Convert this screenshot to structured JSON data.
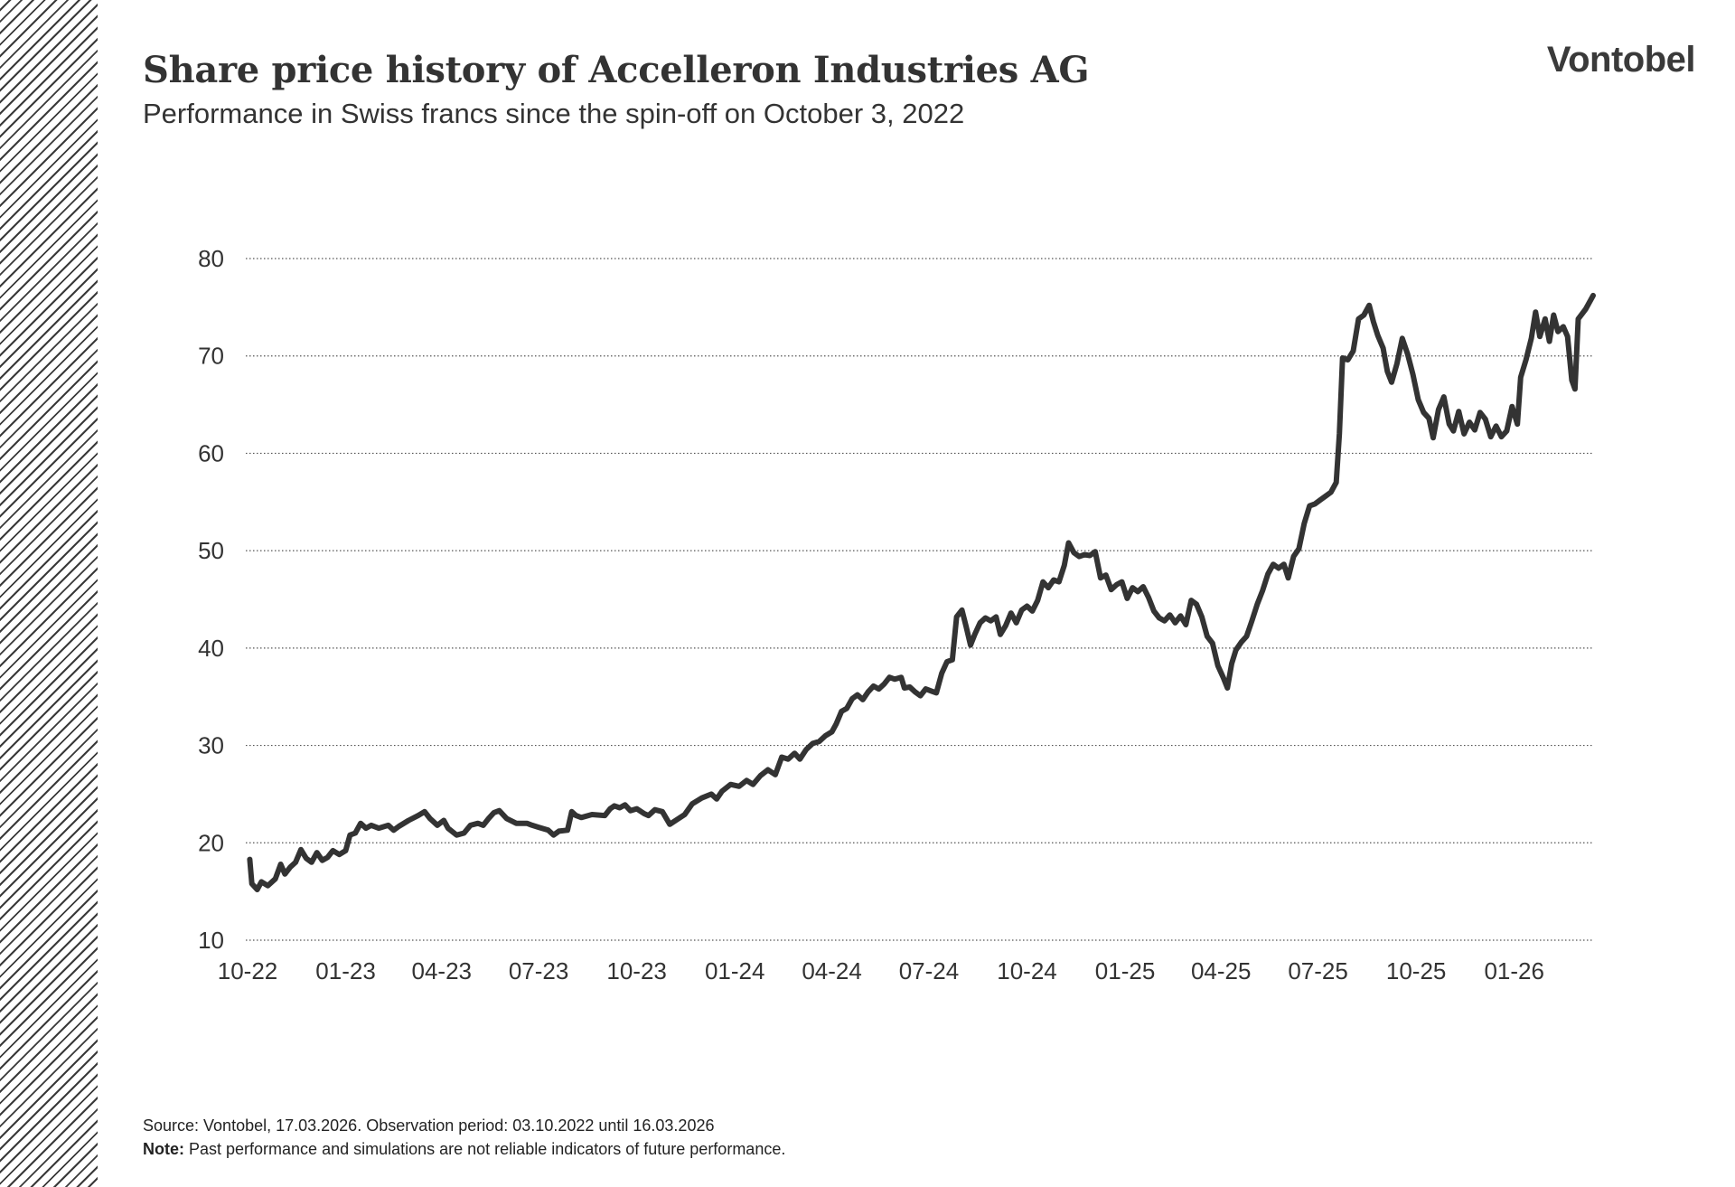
{
  "header": {
    "title": "Share price history of Accelleron Industries AG",
    "subtitle": "Performance in Swiss francs since the spin-off on October 3, 2022",
    "logo": "Vontobel"
  },
  "footer": {
    "source": "Source: Vontobel, 17.03.2026. Observation period: 03.10.2022 until 16.03.2026",
    "note_label": "Note:",
    "note_text": " Past performance and simulations are not reliable indicators of future performance."
  },
  "colors": {
    "line": "#333333",
    "grid": "#555555",
    "text": "#333333"
  },
  "chart_data": {
    "type": "line",
    "title": "Share price history of Accelleron Industries AG",
    "subtitle": "Performance in Swiss francs since the spin-off on October 3, 2022",
    "xlabel": "",
    "ylabel": "",
    "ylim": [
      10,
      80
    ],
    "yticks": [
      10,
      20,
      30,
      40,
      50,
      60,
      70,
      80
    ],
    "xlim": [
      "2022-10-03",
      "2026-03-16"
    ],
    "xticks": [
      {
        "label": "10-22",
        "date": "2022-10-01"
      },
      {
        "label": "01-23",
        "date": "2023-01-01"
      },
      {
        "label": "04-23",
        "date": "2023-04-01"
      },
      {
        "label": "07-23",
        "date": "2023-07-01"
      },
      {
        "label": "10-23",
        "date": "2023-10-01"
      },
      {
        "label": "01-24",
        "date": "2024-01-01"
      },
      {
        "label": "04-24",
        "date": "2024-04-01"
      },
      {
        "label": "07-24",
        "date": "2024-07-01"
      },
      {
        "label": "10-24",
        "date": "2024-10-01"
      },
      {
        "label": "01-25",
        "date": "2025-01-01"
      },
      {
        "label": "04-25",
        "date": "2025-04-01"
      },
      {
        "label": "07-25",
        "date": "2025-07-01"
      },
      {
        "label": "10-25",
        "date": "2025-10-01"
      },
      {
        "label": "01-26",
        "date": "2026-01-01"
      }
    ],
    "grid": "horizontal dotted",
    "legend": "none",
    "series": [
      {
        "points": [
          [
            "2022-10-03",
            18.3
          ],
          [
            "2022-10-05",
            15.8
          ],
          [
            "2022-10-10",
            15.2
          ],
          [
            "2022-10-14",
            16.0
          ],
          [
            "2022-10-20",
            15.6
          ],
          [
            "2022-10-27",
            16.3
          ],
          [
            "2022-11-01",
            17.8
          ],
          [
            "2022-11-05",
            16.8
          ],
          [
            "2022-11-10",
            17.5
          ],
          [
            "2022-11-15",
            18.0
          ],
          [
            "2022-11-20",
            19.3
          ],
          [
            "2022-11-25",
            18.4
          ],
          [
            "2022-11-30",
            18.0
          ],
          [
            "2022-12-05",
            19.0
          ],
          [
            "2022-12-10",
            18.2
          ],
          [
            "2022-12-15",
            18.5
          ],
          [
            "2022-12-20",
            19.2
          ],
          [
            "2022-12-26",
            18.8
          ],
          [
            "2023-01-01",
            19.2
          ],
          [
            "2023-01-05",
            20.8
          ],
          [
            "2023-01-10",
            21.0
          ],
          [
            "2023-01-15",
            22.0
          ],
          [
            "2023-01-20",
            21.5
          ],
          [
            "2023-01-25",
            21.8
          ],
          [
            "2023-02-01",
            21.5
          ],
          [
            "2023-02-10",
            21.8
          ],
          [
            "2023-02-15",
            21.3
          ],
          [
            "2023-02-20",
            21.7
          ],
          [
            "2023-03-01",
            22.3
          ],
          [
            "2023-03-10",
            22.8
          ],
          [
            "2023-03-16",
            23.2
          ],
          [
            "2023-03-21",
            22.5
          ],
          [
            "2023-03-28",
            21.8
          ],
          [
            "2023-04-03",
            22.3
          ],
          [
            "2023-04-07",
            21.5
          ],
          [
            "2023-04-15",
            20.8
          ],
          [
            "2023-04-22",
            21.0
          ],
          [
            "2023-04-28",
            21.8
          ],
          [
            "2023-05-05",
            22.0
          ],
          [
            "2023-05-10",
            21.8
          ],
          [
            "2023-05-15",
            22.5
          ],
          [
            "2023-05-20",
            23.1
          ],
          [
            "2023-05-25",
            23.3
          ],
          [
            "2023-06-01",
            22.5
          ],
          [
            "2023-06-10",
            22.0
          ],
          [
            "2023-06-20",
            22.0
          ],
          [
            "2023-06-25",
            21.8
          ],
          [
            "2023-07-01",
            21.6
          ],
          [
            "2023-07-10",
            21.3
          ],
          [
            "2023-07-15",
            20.8
          ],
          [
            "2023-07-20",
            21.2
          ],
          [
            "2023-07-28",
            21.3
          ],
          [
            "2023-08-01",
            23.2
          ],
          [
            "2023-08-05",
            22.8
          ],
          [
            "2023-08-10",
            22.6
          ],
          [
            "2023-08-20",
            22.9
          ],
          [
            "2023-09-01",
            22.8
          ],
          [
            "2023-09-06",
            23.5
          ],
          [
            "2023-09-10",
            23.8
          ],
          [
            "2023-09-15",
            23.6
          ],
          [
            "2023-09-20",
            23.9
          ],
          [
            "2023-09-25",
            23.3
          ],
          [
            "2023-10-01",
            23.5
          ],
          [
            "2023-10-08",
            23.0
          ],
          [
            "2023-10-12",
            22.8
          ],
          [
            "2023-10-18",
            23.4
          ],
          [
            "2023-10-25",
            23.2
          ],
          [
            "2023-11-01",
            21.9
          ],
          [
            "2023-11-08",
            22.4
          ],
          [
            "2023-11-15",
            22.9
          ],
          [
            "2023-11-22",
            24.0
          ],
          [
            "2023-12-01",
            24.6
          ],
          [
            "2023-12-10",
            25.0
          ],
          [
            "2023-12-15",
            24.5
          ],
          [
            "2023-12-20",
            25.3
          ],
          [
            "2023-12-28",
            26.0
          ],
          [
            "2024-01-05",
            25.8
          ],
          [
            "2024-01-12",
            26.4
          ],
          [
            "2024-01-18",
            26.0
          ],
          [
            "2024-01-25",
            26.9
          ],
          [
            "2024-02-01",
            27.5
          ],
          [
            "2024-02-08",
            27.0
          ],
          [
            "2024-02-14",
            28.8
          ],
          [
            "2024-02-20",
            28.6
          ],
          [
            "2024-02-26",
            29.2
          ],
          [
            "2024-03-02",
            28.6
          ],
          [
            "2024-03-08",
            29.6
          ],
          [
            "2024-03-14",
            30.2
          ],
          [
            "2024-03-20",
            30.4
          ],
          [
            "2024-03-26",
            31.0
          ],
          [
            "2024-04-01",
            31.4
          ],
          [
            "2024-04-05",
            32.2
          ],
          [
            "2024-04-10",
            33.5
          ],
          [
            "2024-04-15",
            33.8
          ],
          [
            "2024-04-20",
            34.8
          ],
          [
            "2024-04-25",
            35.2
          ],
          [
            "2024-04-30",
            34.7
          ],
          [
            "2024-05-05",
            35.5
          ],
          [
            "2024-05-10",
            36.1
          ],
          [
            "2024-05-15",
            35.8
          ],
          [
            "2024-05-20",
            36.3
          ],
          [
            "2024-05-25",
            37.0
          ],
          [
            "2024-05-30",
            36.8
          ],
          [
            "2024-06-05",
            37.0
          ],
          [
            "2024-06-08",
            35.9
          ],
          [
            "2024-06-13",
            36.0
          ],
          [
            "2024-06-18",
            35.5
          ],
          [
            "2024-06-23",
            35.1
          ],
          [
            "2024-06-28",
            35.8
          ],
          [
            "2024-07-03",
            35.6
          ],
          [
            "2024-07-08",
            35.4
          ],
          [
            "2024-07-13",
            37.4
          ],
          [
            "2024-07-18",
            38.6
          ],
          [
            "2024-07-23",
            38.8
          ],
          [
            "2024-07-27",
            43.2
          ],
          [
            "2024-08-01",
            43.9
          ],
          [
            "2024-08-05",
            42.2
          ],
          [
            "2024-08-09",
            40.3
          ],
          [
            "2024-08-13",
            41.4
          ],
          [
            "2024-08-18",
            42.6
          ],
          [
            "2024-08-23",
            43.1
          ],
          [
            "2024-08-28",
            42.8
          ],
          [
            "2024-09-02",
            43.2
          ],
          [
            "2024-09-06",
            41.4
          ],
          [
            "2024-09-11",
            42.3
          ],
          [
            "2024-09-16",
            43.6
          ],
          [
            "2024-09-21",
            42.6
          ],
          [
            "2024-09-26",
            43.9
          ],
          [
            "2024-10-01",
            44.3
          ],
          [
            "2024-10-06",
            43.8
          ],
          [
            "2024-10-11",
            44.9
          ],
          [
            "2024-10-16",
            46.8
          ],
          [
            "2024-10-21",
            46.2
          ],
          [
            "2024-10-26",
            47.0
          ],
          [
            "2024-10-31",
            46.8
          ],
          [
            "2024-11-05",
            48.5
          ],
          [
            "2024-11-09",
            50.8
          ],
          [
            "2024-11-14",
            49.8
          ],
          [
            "2024-11-19",
            49.4
          ],
          [
            "2024-11-24",
            49.6
          ],
          [
            "2024-11-29",
            49.5
          ],
          [
            "2024-12-04",
            49.9
          ],
          [
            "2024-12-09",
            47.2
          ],
          [
            "2024-12-14",
            47.5
          ],
          [
            "2024-12-19",
            46.0
          ],
          [
            "2024-12-24",
            46.5
          ],
          [
            "2024-12-29",
            46.8
          ],
          [
            "2025-01-03",
            45.1
          ],
          [
            "2025-01-08",
            46.2
          ],
          [
            "2025-01-13",
            45.8
          ],
          [
            "2025-01-18",
            46.3
          ],
          [
            "2025-01-23",
            45.2
          ],
          [
            "2025-01-28",
            43.8
          ],
          [
            "2025-02-02",
            43.1
          ],
          [
            "2025-02-07",
            42.8
          ],
          [
            "2025-02-12",
            43.4
          ],
          [
            "2025-02-17",
            42.6
          ],
          [
            "2025-02-22",
            43.3
          ],
          [
            "2025-02-27",
            42.4
          ],
          [
            "2025-03-04",
            44.9
          ],
          [
            "2025-03-09",
            44.5
          ],
          [
            "2025-03-14",
            43.2
          ],
          [
            "2025-03-19",
            41.2
          ],
          [
            "2025-03-24",
            40.5
          ],
          [
            "2025-03-29",
            38.2
          ],
          [
            "2025-04-03",
            37.0
          ],
          [
            "2025-04-07",
            35.9
          ],
          [
            "2025-04-11",
            38.4
          ],
          [
            "2025-04-15",
            39.8
          ],
          [
            "2025-04-20",
            40.6
          ],
          [
            "2025-04-25",
            41.2
          ],
          [
            "2025-04-30",
            42.8
          ],
          [
            "2025-05-05",
            44.5
          ],
          [
            "2025-05-10",
            45.9
          ],
          [
            "2025-05-15",
            47.6
          ],
          [
            "2025-05-20",
            48.6
          ],
          [
            "2025-05-25",
            48.2
          ],
          [
            "2025-05-30",
            48.6
          ],
          [
            "2025-06-03",
            47.2
          ],
          [
            "2025-06-08",
            49.4
          ],
          [
            "2025-06-13",
            50.2
          ],
          [
            "2025-06-18",
            52.8
          ],
          [
            "2025-06-23",
            54.6
          ],
          [
            "2025-06-28",
            54.8
          ],
          [
            "2025-07-03",
            55.2
          ],
          [
            "2025-07-08",
            55.6
          ],
          [
            "2025-07-13",
            56.0
          ],
          [
            "2025-07-18",
            57.0
          ],
          [
            "2025-07-21",
            62.0
          ],
          [
            "2025-07-24",
            69.8
          ],
          [
            "2025-07-29",
            69.6
          ],
          [
            "2025-08-03",
            70.5
          ],
          [
            "2025-08-08",
            73.8
          ],
          [
            "2025-08-13",
            74.2
          ],
          [
            "2025-08-18",
            75.2
          ],
          [
            "2025-08-22",
            73.5
          ],
          [
            "2025-08-26",
            72.1
          ],
          [
            "2025-08-31",
            70.8
          ],
          [
            "2025-09-04",
            68.4
          ],
          [
            "2025-09-08",
            67.3
          ],
          [
            "2025-09-13",
            69.2
          ],
          [
            "2025-09-18",
            71.8
          ],
          [
            "2025-09-23",
            70.2
          ],
          [
            "2025-09-28",
            68.1
          ],
          [
            "2025-10-03",
            65.5
          ],
          [
            "2025-10-08",
            64.2
          ],
          [
            "2025-10-13",
            63.6
          ],
          [
            "2025-10-17",
            61.6
          ],
          [
            "2025-10-22",
            64.5
          ],
          [
            "2025-10-27",
            65.8
          ],
          [
            "2025-11-01",
            63.0
          ],
          [
            "2025-11-05",
            62.3
          ],
          [
            "2025-11-10",
            64.3
          ],
          [
            "2025-11-15",
            62.0
          ],
          [
            "2025-11-20",
            63.2
          ],
          [
            "2025-11-25",
            62.4
          ],
          [
            "2025-11-30",
            64.2
          ],
          [
            "2025-12-05",
            63.5
          ],
          [
            "2025-12-10",
            61.7
          ],
          [
            "2025-12-15",
            62.8
          ],
          [
            "2025-12-20",
            61.7
          ],
          [
            "2025-12-25",
            62.3
          ],
          [
            "2025-12-30",
            64.8
          ],
          [
            "2026-01-04",
            63.0
          ],
          [
            "2026-01-07",
            67.8
          ],
          [
            "2026-01-12",
            69.6
          ],
          [
            "2026-01-17",
            71.8
          ],
          [
            "2026-01-21",
            74.5
          ],
          [
            "2026-01-25",
            72.0
          ],
          [
            "2026-01-30",
            73.8
          ],
          [
            "2026-02-03",
            71.5
          ],
          [
            "2026-02-07",
            74.2
          ],
          [
            "2026-02-11",
            72.5
          ],
          [
            "2026-02-16",
            73.0
          ],
          [
            "2026-02-20",
            72.0
          ],
          [
            "2026-02-24",
            67.5
          ],
          [
            "2026-02-27",
            66.6
          ],
          [
            "2026-03-02",
            73.8
          ],
          [
            "2026-03-09",
            74.8
          ],
          [
            "2026-03-16",
            76.2
          ]
        ]
      }
    ]
  }
}
